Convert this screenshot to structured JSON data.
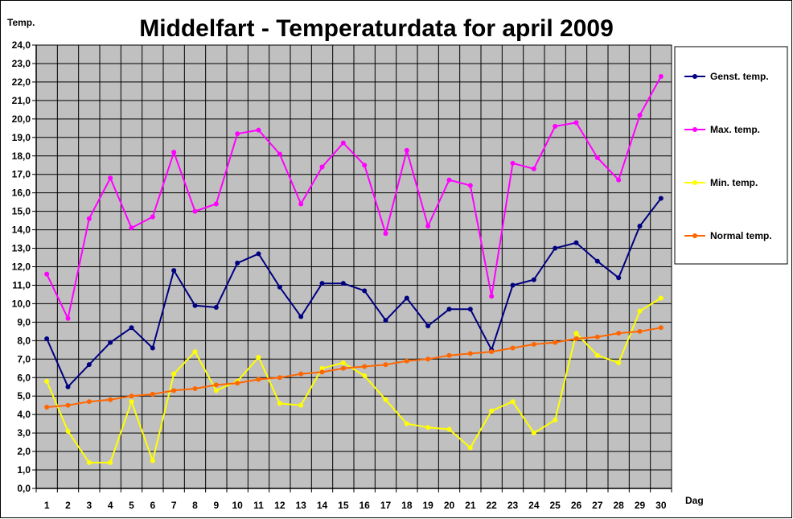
{
  "chart_data": {
    "type": "line",
    "title": "Middelfart - Temperaturdata for april 2009",
    "ylabel": "Temp.",
    "xlabel": "Dag",
    "ylim": [
      0,
      24
    ],
    "ytick_step": 1,
    "x": [
      1,
      2,
      3,
      4,
      5,
      6,
      7,
      8,
      9,
      10,
      11,
      12,
      13,
      14,
      15,
      16,
      17,
      18,
      19,
      20,
      21,
      22,
      23,
      24,
      25,
      26,
      27,
      28,
      29,
      30
    ],
    "grid": true,
    "legend_position": "right",
    "plot_background": "#c0c0c0",
    "series": [
      {
        "name": "Genst. temp.",
        "color": "#000080",
        "values": [
          8.1,
          5.5,
          6.7,
          7.9,
          8.7,
          7.6,
          11.8,
          9.9,
          9.8,
          12.2,
          12.7,
          10.9,
          9.3,
          11.1,
          11.1,
          10.7,
          9.1,
          10.3,
          8.8,
          9.7,
          9.7,
          7.5,
          11.0,
          11.3,
          13.0,
          13.3,
          12.3,
          11.4,
          14.2,
          15.7
        ]
      },
      {
        "name": "Max. temp.",
        "color": "#ff00ff",
        "values": [
          11.6,
          9.2,
          14.6,
          16.8,
          14.1,
          14.7,
          18.2,
          15.0,
          15.4,
          19.2,
          19.4,
          18.1,
          15.4,
          17.4,
          18.7,
          17.5,
          13.8,
          18.3,
          14.2,
          16.7,
          16.4,
          10.4,
          17.6,
          17.3,
          19.6,
          19.8,
          17.9,
          16.7,
          20.2,
          22.3
        ]
      },
      {
        "name": "Min. temp.",
        "color": "#ffff00",
        "values": [
          5.8,
          3.1,
          1.4,
          1.4,
          4.7,
          1.5,
          6.2,
          7.4,
          5.3,
          5.8,
          7.1,
          4.6,
          4.5,
          6.5,
          6.8,
          6.1,
          4.8,
          3.5,
          3.3,
          3.2,
          2.2,
          4.2,
          4.7,
          3.0,
          3.7,
          8.4,
          7.2,
          6.8,
          9.6,
          10.3
        ]
      },
      {
        "name": "Normal temp.",
        "color": "#ff6600",
        "values": [
          4.4,
          4.5,
          4.7,
          4.8,
          5.0,
          5.1,
          5.3,
          5.4,
          5.6,
          5.7,
          5.9,
          6.0,
          6.2,
          6.3,
          6.5,
          6.6,
          6.7,
          6.9,
          7.0,
          7.2,
          7.3,
          7.4,
          7.6,
          7.8,
          7.9,
          8.1,
          8.2,
          8.4,
          8.5,
          8.7
        ]
      }
    ]
  }
}
